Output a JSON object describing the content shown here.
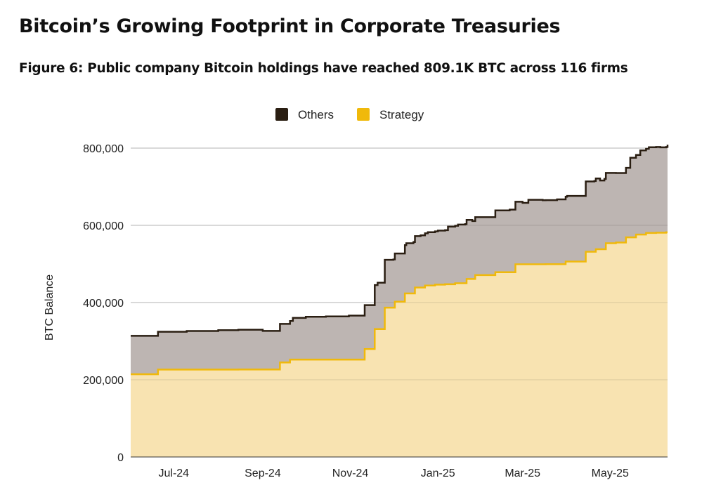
{
  "title": "Bitcoin’s Growing Footprint in Corporate Treasuries",
  "subtitle": "Figure 6: Public company Bitcoin holdings have reached 809.1K BTC across 116 firms",
  "colors": {
    "others_fill": "#bdb5b2",
    "others_line": "#2a1e12",
    "strategy_fill": "#f8e3b1",
    "strategy_line": "#f0b90b",
    "grid": "#cccccc"
  },
  "chart_data": {
    "type": "area",
    "stacked": true,
    "title": "",
    "xlabel": "",
    "ylabel": "BTC Balance",
    "ylim": [
      0,
      800000
    ],
    "yticks": [
      0,
      200000,
      400000,
      600000,
      800000
    ],
    "ytick_labels": [
      "0",
      "200,000",
      "400,000",
      "600,000",
      "800,000"
    ],
    "x_range": [
      "2024-06-01",
      "2025-06-10"
    ],
    "xticks": [
      "2024-07-01",
      "2024-09-01",
      "2024-11-01",
      "2025-01-01",
      "2025-03-01",
      "2025-05-01"
    ],
    "xtick_labels": [
      "Jul-24",
      "Sep-24",
      "Nov-24",
      "Jan-25",
      "Mar-25",
      "May-25"
    ],
    "legend": {
      "position": "top-center",
      "entries": [
        "Others",
        "Strategy"
      ]
    },
    "grid": true,
    "series": [
      {
        "name": "Strategy",
        "dates": [
          "2024-06-01",
          "2024-06-20",
          "2024-07-15",
          "2024-08-15",
          "2024-09-13",
          "2024-09-20",
          "2024-10-31",
          "2024-11-11",
          "2024-11-18",
          "2024-11-25",
          "2024-12-02",
          "2024-12-09",
          "2024-12-16",
          "2024-12-23",
          "2024-12-30",
          "2025-01-06",
          "2025-01-13",
          "2025-01-21",
          "2025-01-27",
          "2025-02-10",
          "2025-02-24",
          "2025-03-17",
          "2025-03-31",
          "2025-04-14",
          "2025-04-21",
          "2025-04-28",
          "2025-05-05",
          "2025-05-12",
          "2025-05-19",
          "2025-05-26",
          "2025-06-02",
          "2025-06-09",
          "2025-06-10"
        ],
        "values": [
          214400,
          226331,
          226331,
          226500,
          244800,
          252220,
          252220,
          279420,
          331200,
          386700,
          402100,
          423650,
          439000,
          444262,
          446400,
          447470,
          450000,
          461000,
          471107,
          478740,
          499096,
          499226,
          506137,
          531644,
          538200,
          553555,
          555450,
          568840,
          576230,
          580250,
          580955,
          582000,
          582000
        ]
      },
      {
        "name": "Others",
        "dates": [
          "2024-06-01",
          "2024-06-20",
          "2024-07-10",
          "2024-08-01",
          "2024-08-15",
          "2024-09-01",
          "2024-09-15",
          "2024-09-22",
          "2024-10-01",
          "2024-10-15",
          "2024-10-31",
          "2024-11-05",
          "2024-11-11",
          "2024-11-15",
          "2024-11-20",
          "2024-11-25",
          "2024-12-01",
          "2024-12-05",
          "2024-12-10",
          "2024-12-15",
          "2024-12-20",
          "2024-12-25",
          "2025-01-01",
          "2025-01-08",
          "2025-01-15",
          "2025-01-20",
          "2025-01-25",
          "2025-02-01",
          "2025-02-10",
          "2025-02-20",
          "2025-03-01",
          "2025-03-05",
          "2025-03-15",
          "2025-03-25",
          "2025-04-01",
          "2025-04-08",
          "2025-04-14",
          "2025-04-20",
          "2025-04-24",
          "2025-04-27",
          "2025-05-05",
          "2025-05-10",
          "2025-05-15",
          "2025-05-22",
          "2025-05-28",
          "2025-06-05",
          "2025-06-10"
        ],
        "values": [
          99500,
          98000,
          100000,
          102000,
          103000,
          100000,
          100000,
          108000,
          111000,
          112000,
          114000,
          114000,
          114000,
          114000,
          120000,
          124000,
          125000,
          125000,
          130000,
          133000,
          135000,
          138000,
          140000,
          149000,
          152000,
          153000,
          150000,
          150000,
          160000,
          162000,
          159000,
          167000,
          166000,
          168000,
          170000,
          170000,
          182000,
          183000,
          178000,
          182000,
          180000,
          180000,
          206000,
          218000,
          222000,
          221000,
          227000
        ]
      }
    ]
  }
}
